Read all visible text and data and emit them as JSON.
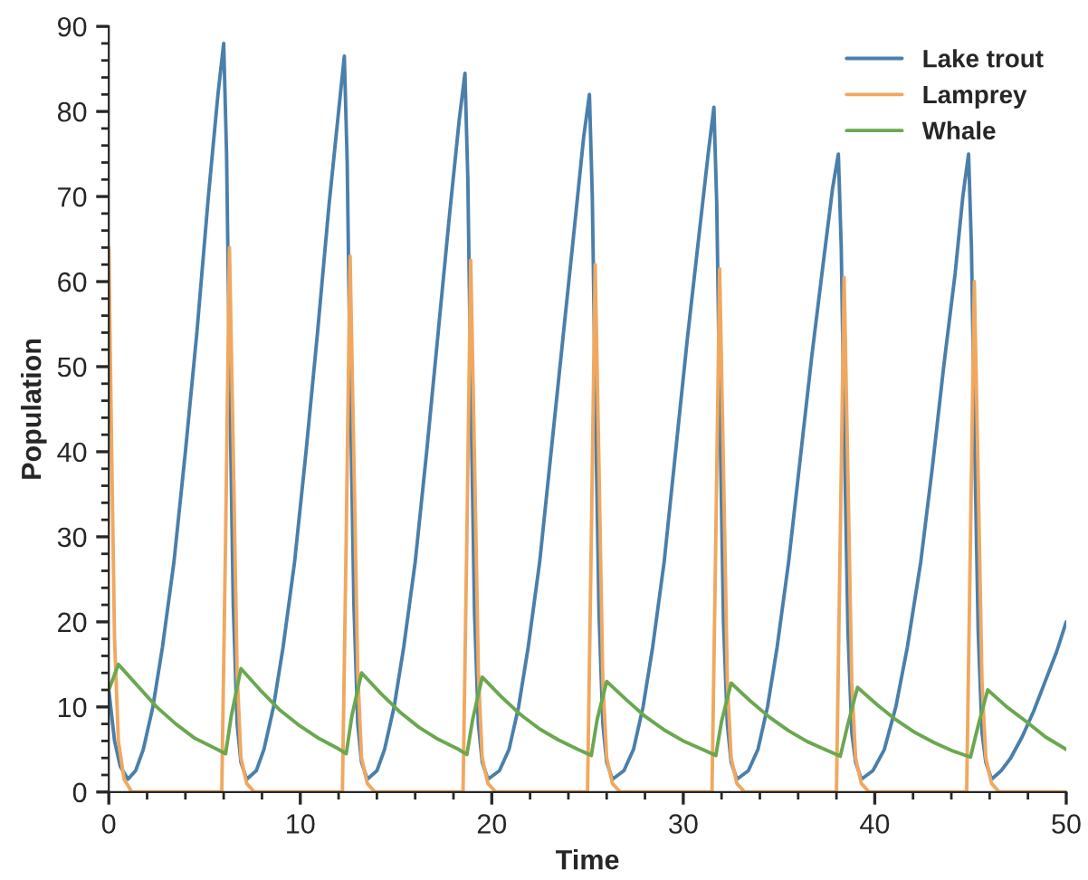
{
  "chart_data": {
    "type": "line",
    "xlabel": "Time",
    "ylabel": "Population",
    "xlim": [
      0,
      50
    ],
    "ylim": [
      0,
      90
    ],
    "xticks": [
      0,
      10,
      20,
      30,
      40,
      50
    ],
    "yticks": [
      0,
      10,
      20,
      30,
      40,
      50,
      60,
      70,
      80,
      90
    ],
    "grid": false,
    "legend": "top right",
    "marker": "none",
    "line_style": "solid",
    "series": [
      {
        "name": "Lake trout",
        "color": "#4a7fab",
        "x": [
          0,
          0.3,
          0.6,
          1.0,
          1.4,
          1.8,
          2.3,
          2.8,
          3.4,
          4.0,
          4.6,
          5.2,
          5.7,
          6.0,
          6.15,
          6.3,
          6.5,
          6.7,
          6.9,
          7.2,
          7.7,
          8.1,
          8.6,
          9.1,
          9.7,
          10.3,
          10.9,
          11.5,
          12.0,
          12.3,
          12.45,
          12.6,
          12.8,
          13.0,
          13.2,
          13.5,
          14.0,
          14.4,
          14.9,
          15.4,
          16.0,
          16.6,
          17.2,
          17.8,
          18.3,
          18.6,
          18.75,
          18.9,
          19.1,
          19.3,
          19.5,
          19.8,
          20.4,
          20.9,
          21.4,
          21.9,
          22.5,
          23.1,
          23.7,
          24.3,
          24.8,
          25.1,
          25.25,
          25.4,
          25.6,
          25.8,
          26.0,
          26.3,
          26.9,
          27.4,
          27.9,
          28.4,
          29.0,
          29.6,
          30.2,
          30.8,
          31.3,
          31.6,
          31.75,
          31.9,
          32.1,
          32.3,
          32.5,
          32.8,
          33.4,
          33.9,
          34.4,
          34.9,
          35.5,
          36.1,
          36.7,
          37.3,
          37.8,
          38.1,
          38.25,
          38.4,
          38.6,
          38.8,
          39.0,
          39.3,
          39.9,
          40.5,
          41.1,
          41.7,
          42.4,
          43.0,
          43.6,
          44.2,
          44.6,
          44.9,
          45.05,
          45.2,
          45.4,
          45.6,
          45.8,
          46.1,
          46.6,
          47.1,
          47.7,
          48.3,
          48.9,
          49.5,
          50
        ],
        "values": [
          12,
          6,
          3,
          1.5,
          2.5,
          5,
          10,
          17,
          27,
          40,
          54,
          70,
          82,
          88,
          75,
          50,
          22,
          8,
          3.5,
          1.5,
          2.5,
          5,
          10,
          17,
          27,
          40,
          54,
          69,
          80,
          86.5,
          74,
          49,
          22,
          8,
          3.5,
          1.5,
          2.5,
          5,
          10,
          17,
          27,
          40,
          54,
          68,
          79,
          84.5,
          72,
          48,
          21,
          8,
          3.5,
          1.5,
          2.5,
          5,
          10,
          17,
          27,
          40,
          53,
          66,
          77,
          82,
          70,
          47,
          21,
          8,
          3.5,
          1.5,
          2.5,
          5,
          10,
          17,
          27,
          40,
          53,
          65,
          75,
          80.5,
          69,
          46,
          20,
          8,
          3.5,
          1.5,
          2.5,
          5,
          10,
          17,
          27,
          39,
          51,
          62,
          71,
          75,
          64,
          43,
          19,
          7,
          3.5,
          1.5,
          2.5,
          5,
          10,
          17,
          27,
          38,
          50,
          61,
          70,
          75,
          64,
          43,
          19,
          7,
          3.5,
          1.5,
          2.5,
          4,
          6.5,
          9.5,
          13,
          16.5,
          20
        ]
      },
      {
        "name": "Lamprey",
        "color": "#f0a860",
        "x": [
          0,
          0.15,
          0.3,
          0.5,
          0.8,
          1.2,
          5.9,
          6.1,
          6.3,
          6.5,
          6.7,
          6.9,
          7.2,
          7.6,
          12.2,
          12.4,
          12.6,
          12.8,
          13.0,
          13.2,
          13.5,
          13.9,
          18.5,
          18.7,
          18.9,
          19.1,
          19.3,
          19.5,
          19.8,
          20.2,
          25.0,
          25.2,
          25.4,
          25.6,
          25.8,
          26.0,
          26.3,
          26.7,
          31.5,
          31.7,
          31.9,
          32.1,
          32.3,
          32.5,
          32.8,
          33.2,
          38.0,
          38.2,
          38.4,
          38.6,
          38.8,
          39.0,
          39.3,
          39.7,
          44.8,
          45.0,
          45.2,
          45.4,
          45.6,
          45.8,
          46.1,
          46.5,
          50
        ],
        "values": [
          64,
          40,
          18,
          6,
          1.5,
          0,
          0,
          30,
          64,
          40,
          14,
          4,
          1,
          0,
          0,
          30,
          63,
          39,
          14,
          4,
          1,
          0,
          0,
          30,
          62.5,
          39,
          14,
          4,
          1,
          0,
          0,
          30,
          62,
          38,
          13,
          4,
          1,
          0,
          0,
          30,
          61.5,
          38,
          13,
          4,
          1,
          0,
          0,
          30,
          60.5,
          37,
          13,
          4,
          1,
          0,
          0,
          30,
          60,
          37,
          13,
          4,
          1,
          0,
          0
        ]
      },
      {
        "name": "Whale",
        "color": "#6aa84f",
        "x": [
          0,
          0.5,
          1.5,
          2.5,
          3.5,
          4.5,
          5.5,
          6.1,
          6.4,
          6.9,
          7.9,
          8.9,
          9.9,
          10.9,
          11.9,
          12.4,
          12.7,
          13.2,
          14.2,
          15.2,
          16.2,
          17.2,
          18.2,
          18.7,
          19.0,
          19.5,
          20.5,
          21.5,
          22.5,
          23.5,
          24.5,
          25.2,
          25.5,
          26.0,
          27,
          28,
          29,
          30,
          31,
          31.7,
          32,
          32.5,
          33.5,
          34.5,
          35.5,
          36.5,
          37.5,
          38.2,
          38.6,
          39.1,
          40.1,
          41.1,
          42.1,
          43.1,
          44.1,
          45.0,
          45.4,
          45.9,
          46.9,
          47.9,
          48.9,
          50
        ],
        "values": [
          12,
          15,
          12.5,
          10,
          8,
          6.3,
          5.2,
          4.5,
          9,
          14.5,
          12,
          9.7,
          7.9,
          6.4,
          5.2,
          4.5,
          9,
          14,
          11.6,
          9.4,
          7.6,
          6.2,
          5.1,
          4.4,
          8.5,
          13.5,
          11.2,
          9.1,
          7.4,
          6.1,
          5,
          4.3,
          8.5,
          13,
          10.9,
          8.9,
          7.3,
          6,
          5,
          4.3,
          8.3,
          12.8,
          10.7,
          8.8,
          7.2,
          5.9,
          4.9,
          4.2,
          8,
          12.3,
          10.3,
          8.5,
          7,
          5.8,
          4.8,
          4.1,
          7.8,
          12,
          10,
          8.3,
          6.5,
          5
        ]
      }
    ]
  }
}
